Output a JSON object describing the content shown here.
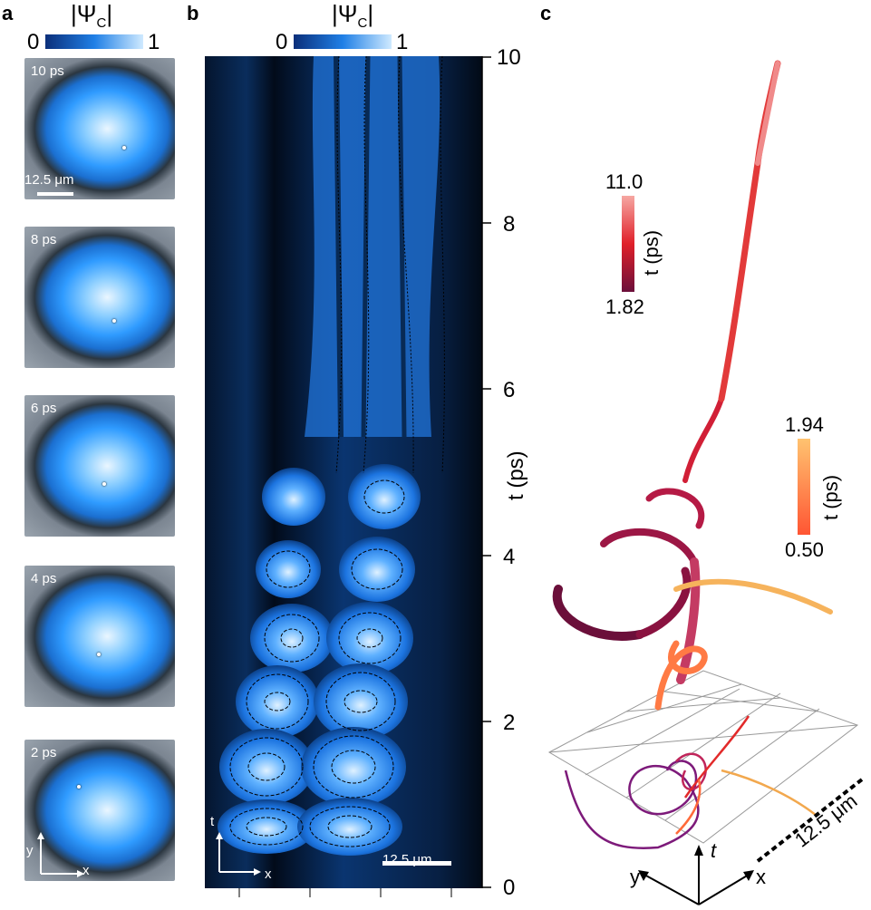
{
  "panels": {
    "a": {
      "letter": "a",
      "colorbar": {
        "title": "|Ψ",
        "title_sub": "C",
        "title_end": "|",
        "min": "0",
        "max": "1"
      },
      "snapshots": [
        {
          "label": "10 ps"
        },
        {
          "label": "8 ps"
        },
        {
          "label": "6 ps"
        },
        {
          "label": "4 ps"
        },
        {
          "label": "2 ps"
        }
      ],
      "scale_bar": "12.5 μm",
      "axes": {
        "y": "y",
        "x": "x"
      }
    },
    "b": {
      "letter": "b",
      "colorbar": {
        "title": "|Ψ",
        "title_sub": "C",
        "title_end": "|",
        "min": "0",
        "max": "1"
      },
      "y_ticks": [
        "10",
        "8",
        "6",
        "4",
        "2",
        "0"
      ],
      "y_label": "t (ps)",
      "scale_bar": "12.5 μm",
      "axes": {
        "t": "t",
        "x": "x"
      }
    },
    "c": {
      "letter": "c",
      "colorbar_upper": {
        "max": "11.0",
        "min": "1.82",
        "label": "t (ps)",
        "color_top": "#f6a7a2",
        "color_bottom": "#6b0f3a"
      },
      "colorbar_lower": {
        "max": "1.94",
        "min": "0.50",
        "label": "t (ps)",
        "color_top": "#ffc370",
        "color_bottom": "#ff5533"
      },
      "scale_bar": "12.5 μm",
      "axes": {
        "t": "t",
        "y": "y",
        "x": "x"
      }
    }
  }
}
